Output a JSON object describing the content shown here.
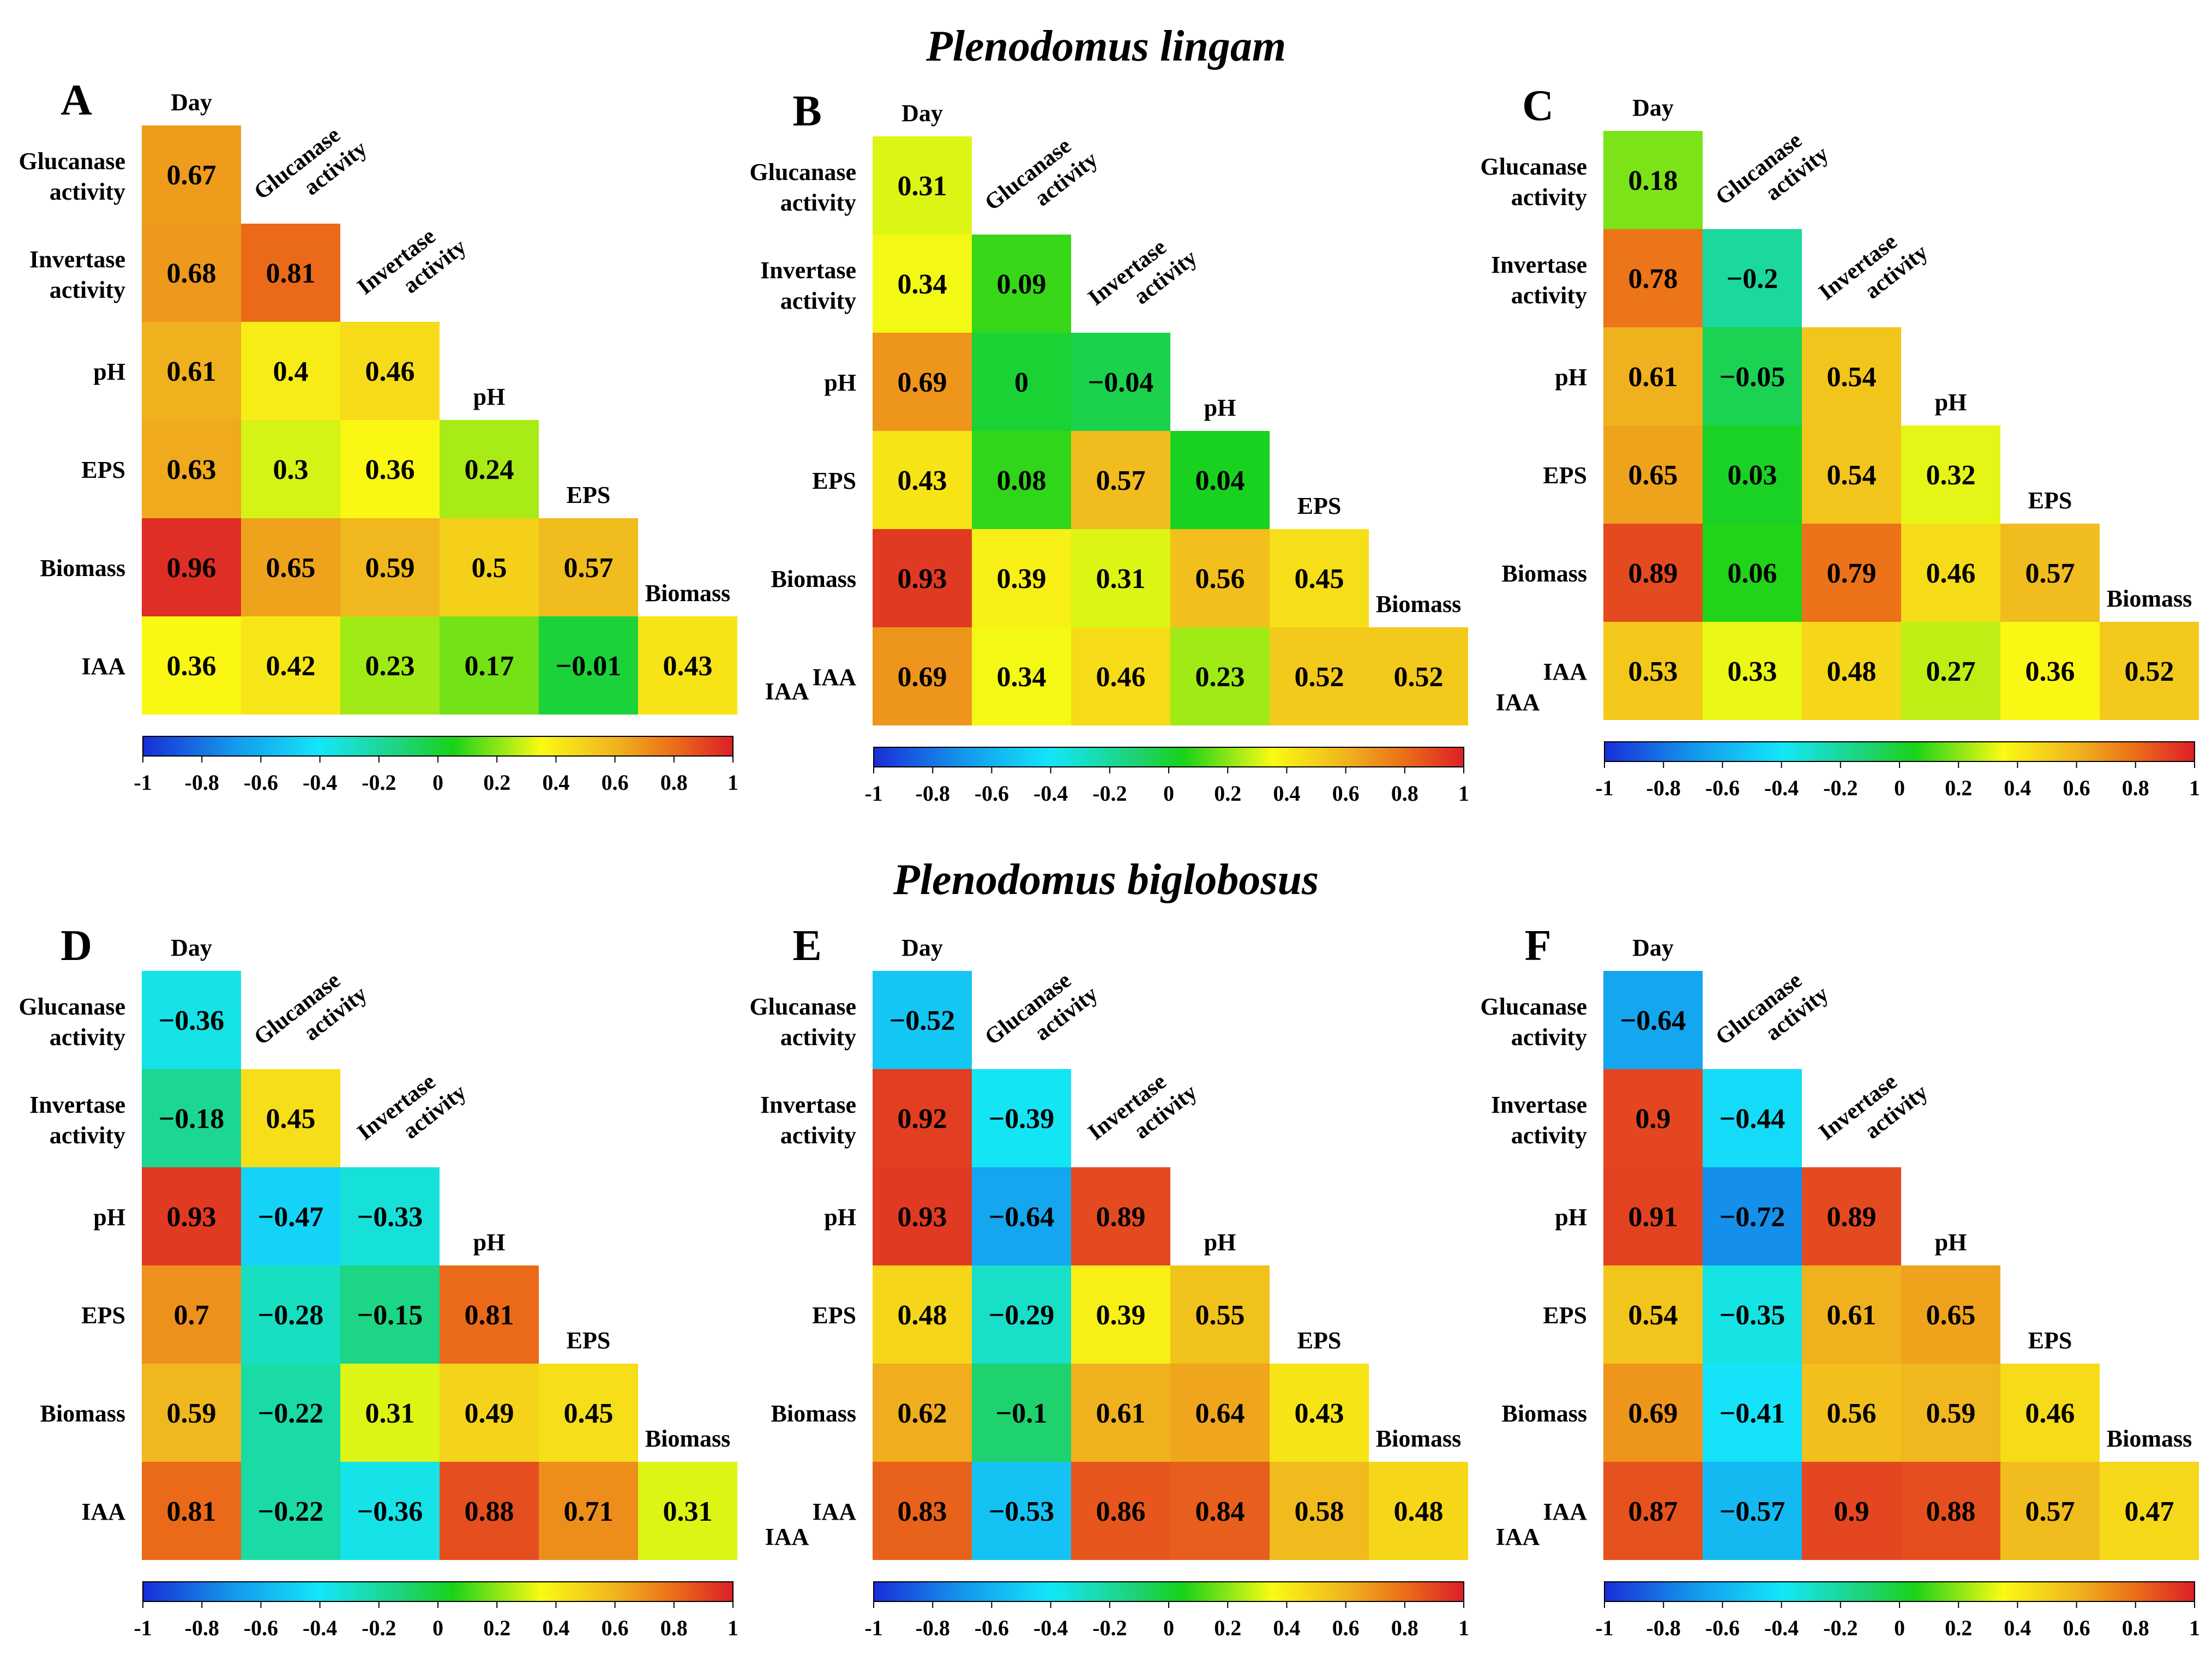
{
  "section_titles": [
    "Plenodomus lingam",
    "Plenodomus biglobosus"
  ],
  "chart_data": [
    {
      "type": "heatmap",
      "panel_label": "A",
      "variables": [
        "Day",
        "Glucanase activity",
        "Invertase activity",
        "pH",
        "EPS",
        "Biomass",
        "IAA"
      ],
      "values": [
        [
          0.67
        ],
        [
          0.68,
          0.81
        ],
        [
          0.61,
          0.4,
          0.46
        ],
        [
          0.63,
          0.3,
          0.36,
          0.24
        ],
        [
          0.96,
          0.65,
          0.59,
          0.5,
          0.57
        ],
        [
          0.36,
          0.42,
          0.23,
          0.17,
          -0.01,
          0.43
        ]
      ],
      "labels": [
        [
          "0.67"
        ],
        [
          "0.68",
          "0.81"
        ],
        [
          "0.61",
          "0.4",
          "0.46"
        ],
        [
          "0.63",
          "0.3",
          "0.36",
          "0.24"
        ],
        [
          "0.96",
          "0.65",
          "0.59",
          "0.5",
          "0.57"
        ],
        [
          "0.36",
          "0.42",
          "0.23",
          "0.17",
          "−0.01",
          "0.43"
        ]
      ],
      "colorbar": {
        "range": [
          -1,
          1
        ],
        "ticks": [
          "-1",
          "-0.8",
          "-0.6",
          "-0.4",
          "-0.2",
          "0",
          "0.2",
          "0.4",
          "0.6",
          "0.8",
          "1"
        ]
      }
    },
    {
      "type": "heatmap",
      "panel_label": "B",
      "variables": [
        "Day",
        "Glucanase activity",
        "Invertase activity",
        "pH",
        "EPS",
        "Biomass",
        "IAA"
      ],
      "values": [
        [
          0.31
        ],
        [
          0.34,
          0.09
        ],
        [
          0.69,
          0,
          -0.04
        ],
        [
          0.43,
          0.08,
          0.57,
          0.04
        ],
        [
          0.93,
          0.39,
          0.31,
          0.56,
          0.45
        ],
        [
          0.69,
          0.34,
          0.46,
          0.23,
          0.52,
          0.52
        ]
      ],
      "labels": [
        [
          "0.31"
        ],
        [
          "0.34",
          "0.09"
        ],
        [
          "0.69",
          "0",
          "−0.04"
        ],
        [
          "0.43",
          "0.08",
          "0.57",
          "0.04"
        ],
        [
          "0.93",
          "0.39",
          "0.31",
          "0.56",
          "0.45"
        ],
        [
          "0.69",
          "0.34",
          "0.46",
          "0.23",
          "0.52",
          "0.52"
        ]
      ],
      "colorbar": {
        "range": [
          -1,
          1
        ],
        "ticks": [
          "-1",
          "-0.8",
          "-0.6",
          "-0.4",
          "-0.2",
          "0",
          "0.2",
          "0.4",
          "0.6",
          "0.8",
          "1"
        ]
      }
    },
    {
      "type": "heatmap",
      "panel_label": "C",
      "variables": [
        "Day",
        "Glucanase activity",
        "Invertase activity",
        "pH",
        "EPS",
        "Biomass",
        "IAA"
      ],
      "values": [
        [
          0.18
        ],
        [
          0.78,
          -0.2
        ],
        [
          0.61,
          -0.05,
          0.54
        ],
        [
          0.65,
          0.03,
          0.54,
          0.32
        ],
        [
          0.89,
          0.06,
          0.79,
          0.46,
          0.57
        ],
        [
          0.53,
          0.33,
          0.48,
          0.27,
          0.36,
          0.52
        ]
      ],
      "labels": [
        [
          "0.18"
        ],
        [
          "0.78",
          "−0.2"
        ],
        [
          "0.61",
          "−0.05",
          "0.54"
        ],
        [
          "0.65",
          "0.03",
          "0.54",
          "0.32"
        ],
        [
          "0.89",
          "0.06",
          "0.79",
          "0.46",
          "0.57"
        ],
        [
          "0.53",
          "0.33",
          "0.48",
          "0.27",
          "0.36",
          "0.52"
        ]
      ],
      "colorbar": {
        "range": [
          -1,
          1
        ],
        "ticks": [
          "-1",
          "-0.8",
          "-0.6",
          "-0.4",
          "-0.2",
          "0",
          "0.2",
          "0.4",
          "0.6",
          "0.8",
          "1"
        ]
      }
    },
    {
      "type": "heatmap",
      "panel_label": "D",
      "variables": [
        "Day",
        "Glucanase activity",
        "Invertase activity",
        "pH",
        "EPS",
        "Biomass",
        "IAA"
      ],
      "values": [
        [
          -0.36
        ],
        [
          -0.18,
          0.45
        ],
        [
          0.93,
          -0.47,
          -0.33
        ],
        [
          0.7,
          -0.28,
          -0.15,
          0.81
        ],
        [
          0.59,
          -0.22,
          0.31,
          0.49,
          0.45
        ],
        [
          0.81,
          -0.22,
          -0.36,
          0.88,
          0.71,
          0.31
        ]
      ],
      "labels": [
        [
          "−0.36"
        ],
        [
          "−0.18",
          "0.45"
        ],
        [
          "0.93",
          "−0.47",
          "−0.33"
        ],
        [
          "0.7",
          "−0.28",
          "−0.15",
          "0.81"
        ],
        [
          "0.59",
          "−0.22",
          "0.31",
          "0.49",
          "0.45"
        ],
        [
          "0.81",
          "−0.22",
          "−0.36",
          "0.88",
          "0.71",
          "0.31"
        ]
      ],
      "colorbar": {
        "range": [
          -1,
          1
        ],
        "ticks": [
          "-1",
          "-0.8",
          "-0.6",
          "-0.4",
          "-0.2",
          "0",
          "0.2",
          "0.4",
          "0.6",
          "0.8",
          "1"
        ]
      }
    },
    {
      "type": "heatmap",
      "panel_label": "E",
      "variables": [
        "Day",
        "Glucanase activity",
        "Invertase activity",
        "pH",
        "EPS",
        "Biomass",
        "IAA"
      ],
      "values": [
        [
          -0.52
        ],
        [
          0.92,
          -0.39
        ],
        [
          0.93,
          -0.64,
          0.89
        ],
        [
          0.48,
          -0.29,
          0.39,
          0.55
        ],
        [
          0.62,
          -0.1,
          0.61,
          0.64,
          0.43
        ],
        [
          0.83,
          -0.53,
          0.86,
          0.84,
          0.58,
          0.48
        ]
      ],
      "labels": [
        [
          "−0.52"
        ],
        [
          "0.92",
          "−0.39"
        ],
        [
          "0.93",
          "−0.64",
          "0.89"
        ],
        [
          "0.48",
          "−0.29",
          "0.39",
          "0.55"
        ],
        [
          "0.62",
          "−0.1",
          "0.61",
          "0.64",
          "0.43"
        ],
        [
          "0.83",
          "−0.53",
          "0.86",
          "0.84",
          "0.58",
          "0.48"
        ]
      ],
      "colorbar": {
        "range": [
          -1,
          1
        ],
        "ticks": [
          "-1",
          "-0.8",
          "-0.6",
          "-0.4",
          "-0.2",
          "0",
          "0.2",
          "0.4",
          "0.6",
          "0.8",
          "1"
        ]
      }
    },
    {
      "type": "heatmap",
      "panel_label": "F",
      "variables": [
        "Day",
        "Glucanase activity",
        "Invertase activity",
        "pH",
        "EPS",
        "Biomass",
        "IAA"
      ],
      "values": [
        [
          -0.64
        ],
        [
          0.9,
          -0.44
        ],
        [
          0.91,
          -0.72,
          0.89
        ],
        [
          0.54,
          -0.35,
          0.61,
          0.65
        ],
        [
          0.69,
          -0.41,
          0.56,
          0.59,
          0.46
        ],
        [
          0.87,
          -0.57,
          0.9,
          0.88,
          0.57,
          0.47
        ]
      ],
      "labels": [
        [
          "−0.64"
        ],
        [
          "0.9",
          "−0.44"
        ],
        [
          "0.91",
          "−0.72",
          "0.89"
        ],
        [
          "0.54",
          "−0.35",
          "0.61",
          "0.65"
        ],
        [
          "0.69",
          "−0.41",
          "0.56",
          "0.59",
          "0.46"
        ],
        [
          "0.87",
          "−0.57",
          "0.9",
          "0.88",
          "0.57",
          "0.47"
        ]
      ],
      "colorbar": {
        "range": [
          -1,
          1
        ],
        "ticks": [
          "-1",
          "-0.8",
          "-0.6",
          "-0.4",
          "-0.2",
          "0",
          "0.2",
          "0.4",
          "0.6",
          "0.8",
          "1"
        ]
      }
    }
  ]
}
